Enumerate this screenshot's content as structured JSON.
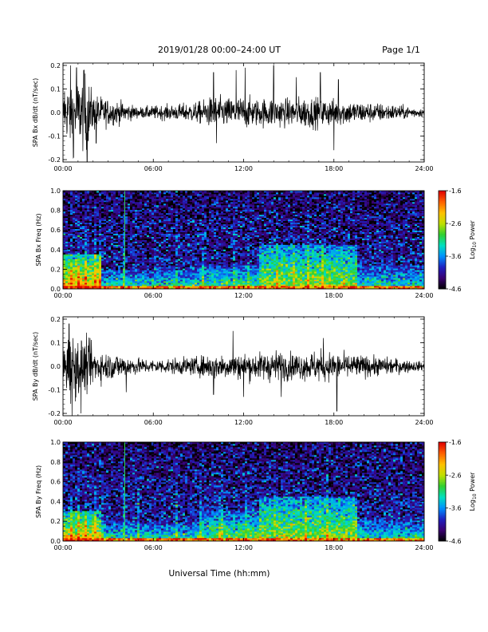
{
  "header": {
    "title": "2019/01/28  00:00–24:00 UT",
    "page": "Page 1/1"
  },
  "x_axis": {
    "label": "Universal Time (hh:mm)",
    "ticks": [
      "00:00",
      "06:00",
      "12:00",
      "18:00",
      "24:00"
    ],
    "range_hours": [
      0,
      24
    ]
  },
  "colorbar": {
    "label_main": "Log",
    "label_sub": "10",
    "label_end": " Power",
    "ticks": [
      "-1.6",
      "-2.6",
      "-3.6",
      "-4.6"
    ],
    "range": [
      -4.6,
      -1.6
    ],
    "colors": [
      "#000000",
      "#3a0070",
      "#2020c0",
      "#0090ff",
      "#00e0c0",
      "#30d030",
      "#c0e000",
      "#ffc000",
      "#ff6000",
      "#e00000"
    ]
  },
  "chart_data": [
    {
      "type": "line",
      "ylabel": "SPA Bx dB/dt (nT/sec)",
      "yticks": [
        "0.2",
        "0.1",
        "0.0",
        "-0.1",
        "-0.2"
      ],
      "ylim": [
        -0.21,
        0.21
      ],
      "x_unit": "hours UT",
      "amplitude_envelope": {
        "x": [
          0,
          0.5,
          1.0,
          1.5,
          2.0,
          3.0,
          4.0,
          5.0,
          6.0,
          7.5,
          9.0,
          10.0,
          11.0,
          12.0,
          13.0,
          14.0,
          15.0,
          16.0,
          17.0,
          18.0,
          20.0,
          22.0,
          24.0
        ],
        "y": [
          0.06,
          0.14,
          0.12,
          0.15,
          0.07,
          0.05,
          0.04,
          0.02,
          0.025,
          0.03,
          0.04,
          0.06,
          0.055,
          0.06,
          0.05,
          0.06,
          0.05,
          0.06,
          0.055,
          0.05,
          0.04,
          0.03,
          0.015
        ]
      },
      "spikes": [
        {
          "x": 0.1,
          "y": 0.09
        },
        {
          "x": 0.5,
          "y": 0.2
        },
        {
          "x": 0.7,
          "y": -0.19
        },
        {
          "x": 0.9,
          "y": 0.19
        },
        {
          "x": 1.4,
          "y": 0.18
        },
        {
          "x": 1.6,
          "y": -0.21
        },
        {
          "x": 2.2,
          "y": -0.13
        },
        {
          "x": 10.0,
          "y": 0.17
        },
        {
          "x": 10.2,
          "y": -0.13
        },
        {
          "x": 11.5,
          "y": 0.18
        },
        {
          "x": 12.1,
          "y": 0.19
        },
        {
          "x": 14.0,
          "y": 0.2
        },
        {
          "x": 15.5,
          "y": 0.15
        },
        {
          "x": 17.1,
          "y": 0.17
        },
        {
          "x": 18.0,
          "y": -0.16
        },
        {
          "x": 18.3,
          "y": 0.14
        }
      ]
    },
    {
      "type": "heatmap",
      "ylabel": "SPA Bx Freq (Hz)",
      "yticks": [
        "1.0",
        "0.8",
        "0.6",
        "0.4",
        "0.2",
        "0.0"
      ],
      "ylim": [
        0,
        1.0
      ],
      "zrange": [
        -4.6,
        -1.6
      ],
      "background_log_power": -4.0,
      "vertical_streaks_hours": [
        0.5,
        1.0,
        1.5,
        2.1,
        2.5,
        4.1,
        7.5,
        9.3,
        11.4,
        12.3,
        14.2,
        15.3,
        16.3,
        17.2
      ],
      "bright_line_hours": 4.1,
      "enhancements": [
        {
          "t_start": 0,
          "t_end": 2.5,
          "f_max": 0.35,
          "peak": -2.2
        },
        {
          "t_start": 2.5,
          "t_end": 9,
          "f_max": 0.2,
          "peak": -3.0
        },
        {
          "t_start": 9,
          "t_end": 13,
          "f_max": 0.25,
          "peak": -2.9
        },
        {
          "t_start": 13,
          "t_end": 19.5,
          "f_max": 0.45,
          "peak": -2.6
        },
        {
          "t_start": 19.5,
          "t_end": 24,
          "f_max": 0.25,
          "peak": -3.1
        }
      ]
    },
    {
      "type": "line",
      "ylabel": "SPA By dB/dt (nT/sec)",
      "yticks": [
        "0.2",
        "0.1",
        "0.0",
        "-0.1",
        "-0.2"
      ],
      "ylim": [
        -0.21,
        0.21
      ],
      "x_unit": "hours UT",
      "amplitude_envelope": {
        "x": [
          0,
          0.5,
          1.0,
          1.5,
          2.0,
          3.0,
          4.0,
          5.0,
          6.0,
          7.5,
          9.0,
          10.0,
          11.0,
          12.0,
          13.0,
          14.0,
          15.0,
          16.0,
          17.0,
          18.0,
          20.0,
          22.0,
          24.0
        ],
        "y": [
          0.08,
          0.13,
          0.11,
          0.1,
          0.07,
          0.05,
          0.045,
          0.03,
          0.025,
          0.03,
          0.035,
          0.05,
          0.045,
          0.05,
          0.05,
          0.06,
          0.05,
          0.05,
          0.06,
          0.05,
          0.04,
          0.03,
          0.015
        ]
      },
      "spikes": [
        {
          "x": 0.4,
          "y": 0.18
        },
        {
          "x": 0.6,
          "y": -0.21
        },
        {
          "x": 1.2,
          "y": -0.2
        },
        {
          "x": 1.8,
          "y": 0.12
        },
        {
          "x": 4.2,
          "y": -0.11
        },
        {
          "x": 10.0,
          "y": -0.12
        },
        {
          "x": 11.3,
          "y": 0.15
        },
        {
          "x": 12.0,
          "y": -0.13
        },
        {
          "x": 14.5,
          "y": -0.13
        },
        {
          "x": 17.3,
          "y": 0.12
        },
        {
          "x": 18.2,
          "y": -0.19
        }
      ]
    },
    {
      "type": "heatmap",
      "ylabel": "SPA By Freq (Hz)",
      "yticks": [
        "1.0",
        "0.8",
        "0.6",
        "0.4",
        "0.2",
        "0.0"
      ],
      "ylim": [
        0,
        1.0
      ],
      "zrange": [
        -4.6,
        -1.6
      ],
      "background_log_power": -4.0,
      "vertical_streaks_hours": [
        0.5,
        1.0,
        1.5,
        2.1,
        2.6,
        4.1,
        5.0,
        7.5,
        9.1,
        10.5,
        12.2,
        14.1,
        16.2,
        17.5
      ],
      "bright_line_hours": 4.1,
      "enhancements": [
        {
          "t_start": 0,
          "t_end": 2.5,
          "f_max": 0.3,
          "peak": -2.3
        },
        {
          "t_start": 2.5,
          "t_end": 9,
          "f_max": 0.2,
          "peak": -3.0
        },
        {
          "t_start": 9,
          "t_end": 13,
          "f_max": 0.3,
          "peak": -2.8
        },
        {
          "t_start": 13,
          "t_end": 19.5,
          "f_max": 0.45,
          "peak": -2.6
        },
        {
          "t_start": 19.5,
          "t_end": 24,
          "f_max": 0.25,
          "peak": -3.1
        }
      ]
    }
  ]
}
